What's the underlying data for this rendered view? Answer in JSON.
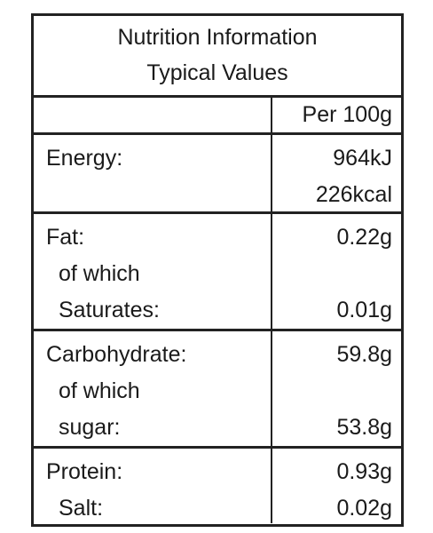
{
  "title": [
    "Nutrition Information",
    "Typical Values"
  ],
  "header": "Per 100g",
  "sections": [
    {
      "rows": [
        {
          "label": "Energy:",
          "value": "964kJ"
        },
        {
          "value": "226kcal"
        }
      ]
    },
    {
      "rows": [
        {
          "label": "Fat:",
          "value": "0.22g"
        },
        {
          "label": "of which"
        },
        {
          "label": "Saturates:",
          "value": "0.01g"
        }
      ]
    },
    {
      "rows": [
        {
          "label": "Carbohydrate:",
          "value": "59.8g"
        },
        {
          "label": "of which"
        },
        {
          "label": "sugar:",
          "value": "53.8g"
        }
      ]
    },
    {
      "rows": [
        {
          "label": "Protein:",
          "value": "0.93g"
        },
        {
          "label": "Salt:",
          "value": "0.02g"
        }
      ]
    }
  ]
}
